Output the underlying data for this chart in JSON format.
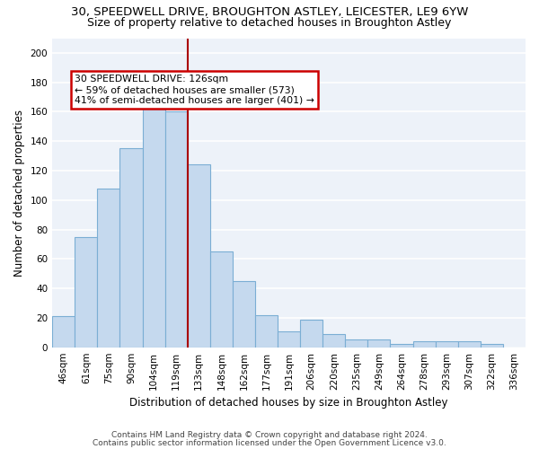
{
  "title1": "30, SPEEDWELL DRIVE, BROUGHTON ASTLEY, LEICESTER, LE9 6YW",
  "title2": "Size of property relative to detached houses in Broughton Astley",
  "xlabel": "Distribution of detached houses by size in Broughton Astley",
  "ylabel": "Number of detached properties",
  "bar_labels": [
    "46sqm",
    "61sqm",
    "75sqm",
    "90sqm",
    "104sqm",
    "119sqm",
    "133sqm",
    "148sqm",
    "162sqm",
    "177sqm",
    "191sqm",
    "206sqm",
    "220sqm",
    "235sqm",
    "249sqm",
    "264sqm",
    "278sqm",
    "293sqm",
    "307sqm",
    "322sqm",
    "336sqm"
  ],
  "bar_values": [
    21,
    75,
    108,
    135,
    168,
    160,
    124,
    65,
    45,
    22,
    11,
    19,
    9,
    5,
    5,
    2,
    4,
    4,
    4,
    2,
    0
  ],
  "bar_color": "#c5d9ee",
  "bar_edge_color": "#7baed4",
  "ylim": [
    0,
    210
  ],
  "yticks": [
    0,
    20,
    40,
    60,
    80,
    100,
    120,
    140,
    160,
    180,
    200
  ],
  "vline_color": "#aa0000",
  "annotation_title": "30 SPEEDWELL DRIVE: 126sqm",
  "annotation_line1": "← 59% of detached houses are smaller (573)",
  "annotation_line2": "41% of semi-detached houses are larger (401) →",
  "annotation_box_color": "#cc0000",
  "footnote1": "Contains HM Land Registry data © Crown copyright and database right 2024.",
  "footnote2": "Contains public sector information licensed under the Open Government Licence v3.0.",
  "bg_color": "#edf2f9",
  "grid_color": "#ffffff",
  "title1_fontsize": 9.5,
  "title2_fontsize": 9.0,
  "ylabel_fontsize": 8.5,
  "xlabel_fontsize": 8.5,
  "tick_fontsize": 7.5,
  "footnote_fontsize": 6.5
}
